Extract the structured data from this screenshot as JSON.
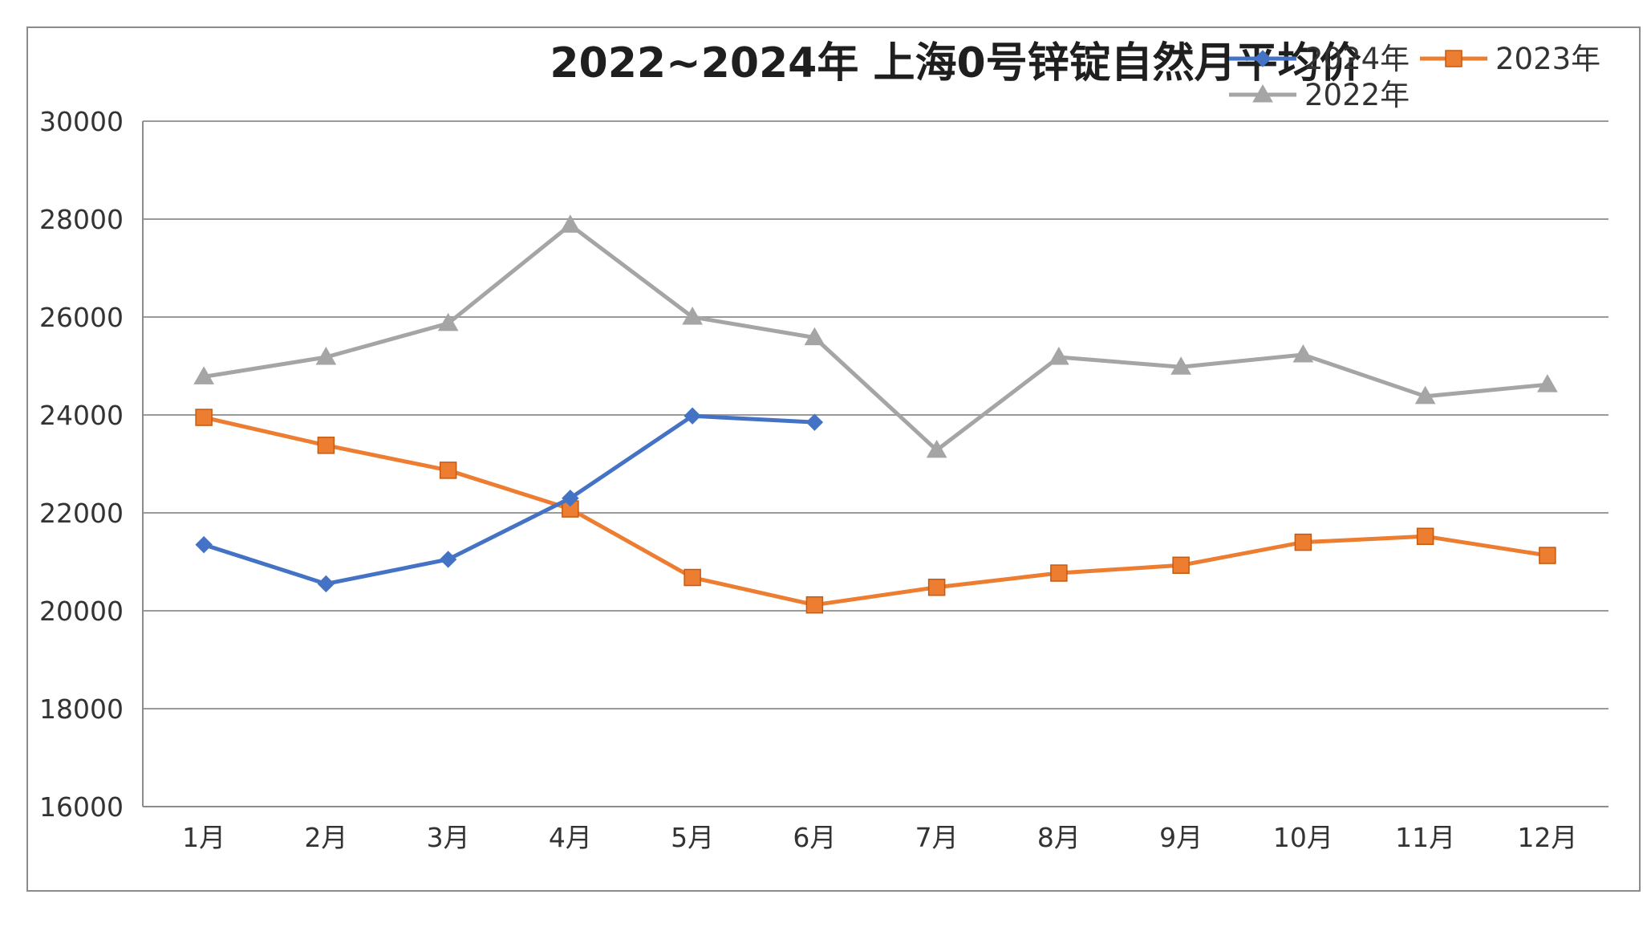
{
  "chart_data": {
    "type": "line",
    "title": "2022~2024年  上海0号锌锭自然月平均价",
    "xlabel": "",
    "ylabel": "",
    "categories": [
      "1月",
      "2月",
      "3月",
      "4月",
      "5月",
      "6月",
      "7月",
      "8月",
      "9月",
      "10月",
      "11月",
      "12月"
    ],
    "ylim": [
      16000,
      30000
    ],
    "yticks": [
      "16000",
      "18000",
      "20000",
      "22000",
      "24000",
      "26000",
      "28000",
      "30000"
    ],
    "grid": true,
    "legend_position": "top-right",
    "series": [
      {
        "name": "2024年",
        "color": "#4472C4",
        "marker": "diamond",
        "values": [
          21350,
          20550,
          21050,
          22300,
          23980,
          23850,
          null,
          null,
          null,
          null,
          null,
          null
        ]
      },
      {
        "name": "2023年",
        "color": "#ED7D31",
        "marker": "square",
        "values": [
          23950,
          23380,
          22870,
          22080,
          20680,
          20120,
          20480,
          20770,
          20930,
          21400,
          21520,
          21130
        ]
      },
      {
        "name": "2022年",
        "color": "#A5A5A5",
        "marker": "triangle",
        "values": [
          24780,
          25180,
          25870,
          27880,
          26000,
          25580,
          23280,
          25180,
          24980,
          25230,
          24380,
          24620
        ]
      }
    ]
  }
}
